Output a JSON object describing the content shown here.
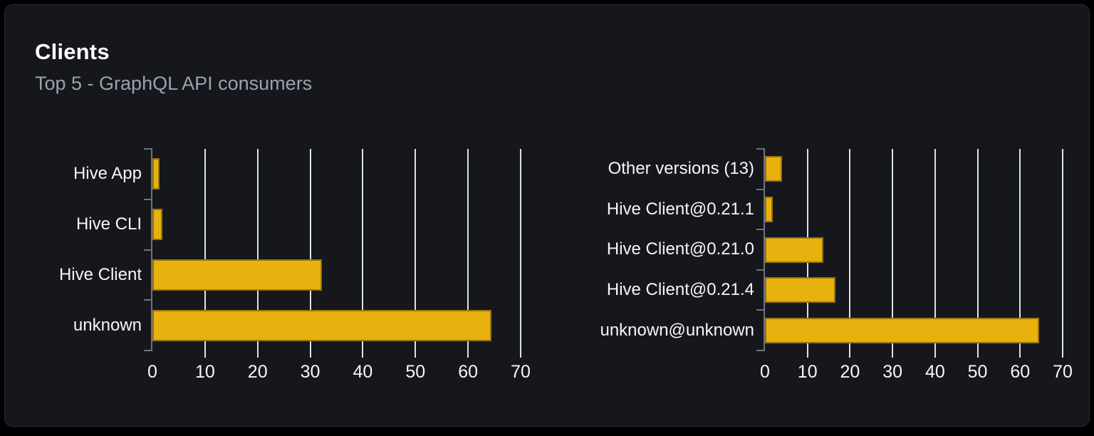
{
  "card": {
    "title": "Clients",
    "subtitle": "Top 5 - GraphQL API consumers"
  },
  "colors": {
    "background": "#000000",
    "card_background": "#15171c",
    "card_border": "#2a2d34",
    "title": "#ffffff",
    "subtitle": "#9ba2ac",
    "bar_fill": "#e9b10d",
    "bar_border": "#96730f",
    "gridline": "#dce1ea",
    "axis": "#6e737c",
    "label": "#f5f6f7"
  },
  "chart_data": [
    {
      "type": "bar",
      "orientation": "horizontal",
      "name": "clients-by-name",
      "categories": [
        "Hive App",
        "Hive CLI",
        "Hive Client",
        "unknown"
      ],
      "values": [
        1.3,
        1.9,
        32.2,
        64.5
      ],
      "xlim": [
        0,
        70
      ],
      "xticks": [
        0,
        10,
        20,
        30,
        40,
        50,
        60,
        70
      ],
      "grid": true,
      "legend": false
    },
    {
      "type": "bar",
      "orientation": "horizontal",
      "name": "clients-by-version",
      "categories": [
        "Other versions (13)",
        "Hive Client@0.21.1",
        "Hive Client@0.21.0",
        "Hive Client@0.21.4",
        "unknown@unknown"
      ],
      "values": [
        4.0,
        1.8,
        13.8,
        16.5,
        64.5
      ],
      "xlim": [
        0,
        70
      ],
      "xticks": [
        0,
        10,
        20,
        30,
        40,
        50,
        60,
        70
      ],
      "grid": true,
      "legend": false
    }
  ]
}
